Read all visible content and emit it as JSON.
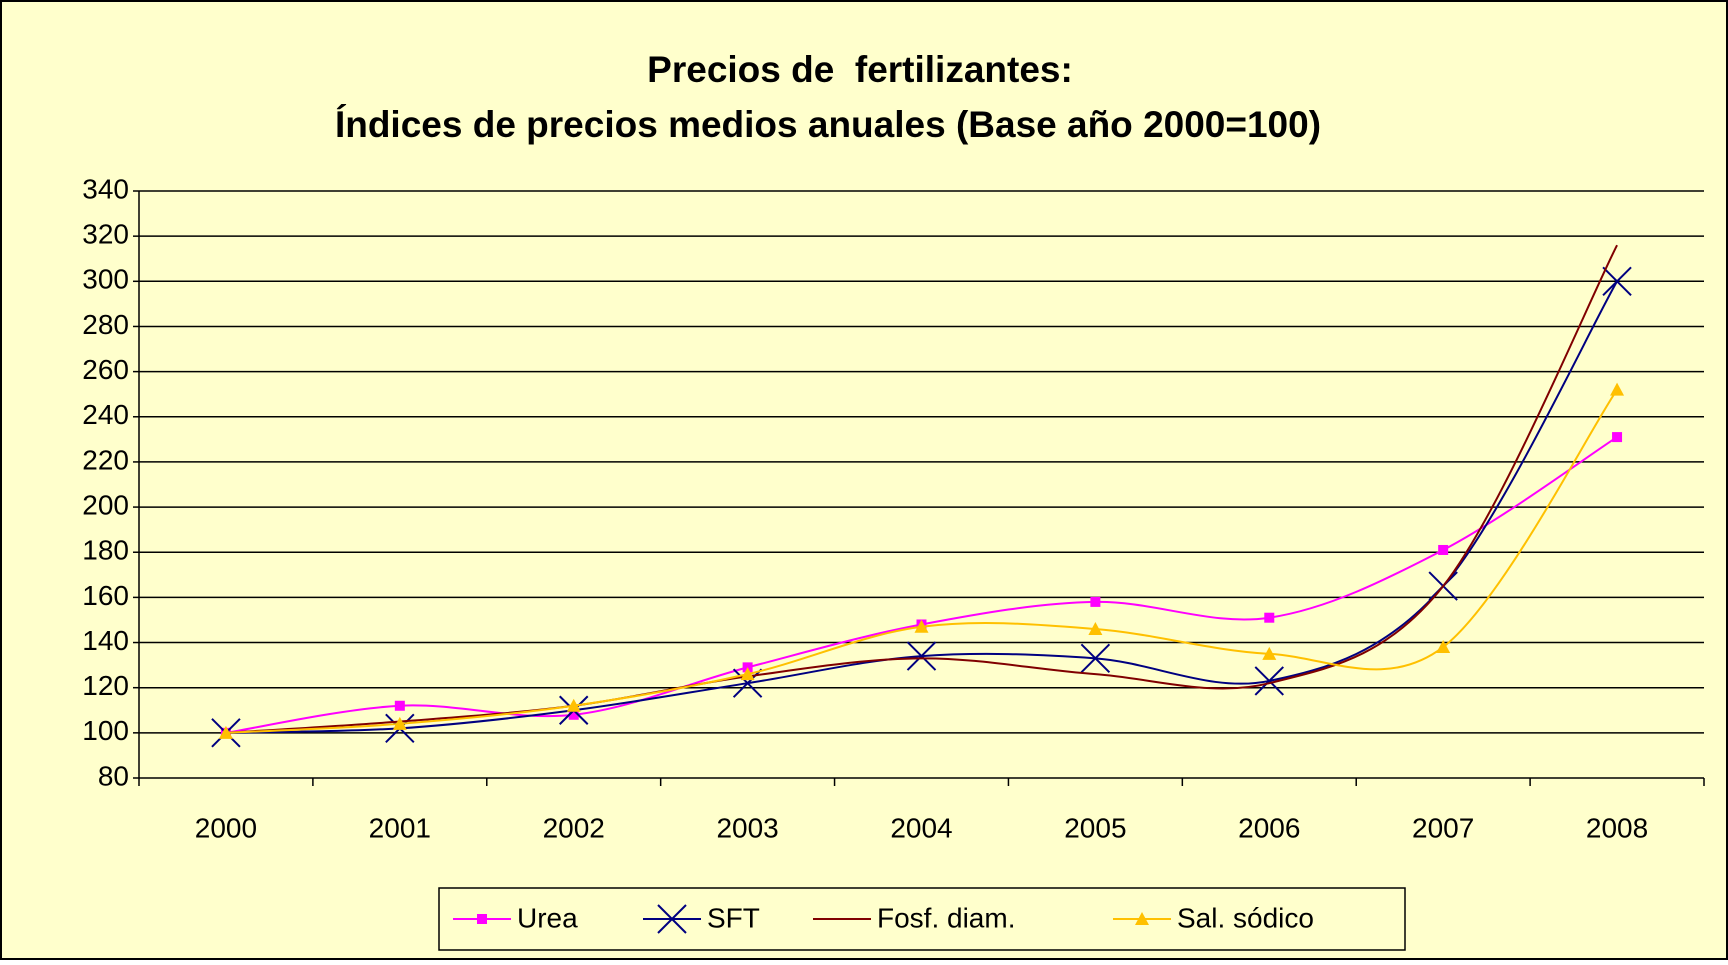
{
  "chart_data": {
    "type": "line",
    "title": "Precios de  fertilizantes:",
    "subtitle": "Índices de precios medios anuales (Base año 2000=100)",
    "categories": [
      "2000",
      "2001",
      "2002",
      "2003",
      "2004",
      "2005",
      "2006",
      "2007",
      "2008"
    ],
    "series": [
      {
        "name": "Urea",
        "color": "#ff00ff",
        "marker": "square",
        "values": [
          100,
          112,
          108,
          129,
          148,
          158,
          151,
          181,
          231
        ]
      },
      {
        "name": "SFT",
        "color": "#000080",
        "marker": "x",
        "values": [
          100,
          102,
          110,
          122,
          134,
          133,
          123,
          165,
          300
        ]
      },
      {
        "name": "Fosf. diam.",
        "color": "#800000",
        "marker": "none",
        "values": [
          100,
          105,
          112,
          125,
          133,
          126,
          122,
          165,
          316
        ]
      },
      {
        "name": "Sal. sódico",
        "color": "#ffc000",
        "marker": "triangle",
        "values": [
          100,
          104,
          112,
          126,
          147,
          146,
          135,
          138,
          252
        ]
      }
    ],
    "ylim": [
      80,
      340
    ],
    "yticks": [
      80,
      100,
      120,
      140,
      160,
      180,
      200,
      220,
      240,
      260,
      280,
      300,
      320,
      340
    ],
    "grid": true,
    "smooth": true,
    "legend": "bottom",
    "background": "#ffffcc"
  }
}
